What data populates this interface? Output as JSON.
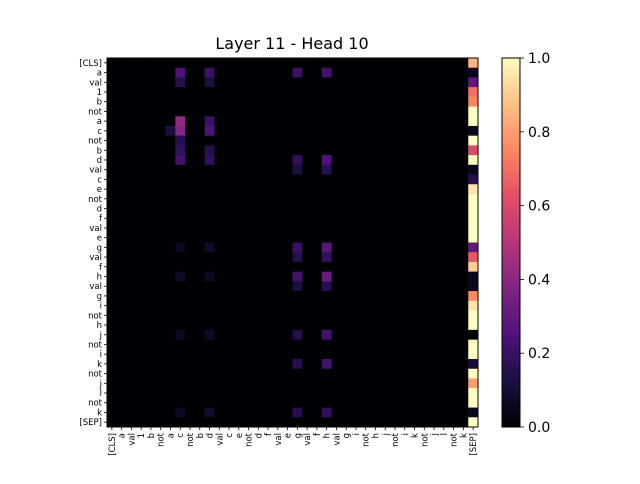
{
  "chart_data": {
    "type": "heatmap",
    "title": "Layer 11 - Head 10",
    "xlabel": "",
    "ylabel": "",
    "colormap": "magma",
    "vmin": 0.0,
    "vmax": 1.0,
    "colorbar_ticks": [
      "0.0",
      "0.2",
      "0.4",
      "0.6",
      "0.8",
      "1.0"
    ],
    "y_tick_labels": [
      "[CLS]",
      "a",
      "val",
      "1",
      "b",
      "not",
      "a",
      "c",
      "not",
      "b",
      "d",
      "val",
      "c",
      "e",
      "not",
      "d",
      "f",
      "val",
      "e",
      "g",
      "val",
      "f",
      "h",
      "val",
      "g",
      "i",
      "not",
      "h",
      "j",
      "not",
      "i",
      "k",
      "not",
      "j",
      "l",
      "not",
      "k",
      "[SEP]"
    ],
    "x_tick_labels": [
      "[CLS]",
      "a",
      "val",
      "1",
      "b",
      "not",
      "a",
      "c",
      "not",
      "b",
      "d",
      "val",
      "c",
      "e",
      "not",
      "d",
      "f",
      "val",
      "e",
      "g",
      "val",
      "f",
      "h",
      "val",
      "g",
      "i",
      "not",
      "h",
      "j",
      "not",
      "i",
      "k",
      "not",
      "j",
      "l",
      "not",
      "k",
      "[SEP]"
    ],
    "n_tokens": 38,
    "description": "Attention weights; most mass on the final [SEP] column, with weak vertical streaks at columns 7, 10, 19, 22.",
    "sep_column_values": [
      0.85,
      0.05,
      0.3,
      0.7,
      0.75,
      1.0,
      1.0,
      0.05,
      1.0,
      0.6,
      1.0,
      0.05,
      0.15,
      0.95,
      1.0,
      1.0,
      1.0,
      1.0,
      1.0,
      0.3,
      0.65,
      0.9,
      0.05,
      0.05,
      0.75,
      0.95,
      1.0,
      1.0,
      0.0,
      1.0,
      1.0,
      0.1,
      1.0,
      0.8,
      1.0,
      1.0,
      0.05,
      1.0
    ],
    "strong_cells": [
      {
        "row": 1,
        "col": 7,
        "value": 0.25
      },
      {
        "row": 1,
        "col": 10,
        "value": 0.2
      },
      {
        "row": 1,
        "col": 19,
        "value": 0.2
      },
      {
        "row": 1,
        "col": 22,
        "value": 0.22
      },
      {
        "row": 2,
        "col": 7,
        "value": 0.15
      },
      {
        "row": 2,
        "col": 10,
        "value": 0.12
      },
      {
        "row": 6,
        "col": 7,
        "value": 0.42
      },
      {
        "row": 6,
        "col": 10,
        "value": 0.2
      },
      {
        "row": 7,
        "col": 7,
        "value": 0.38
      },
      {
        "row": 7,
        "col": 10,
        "value": 0.25
      },
      {
        "row": 7,
        "col": 6,
        "value": 0.12
      },
      {
        "row": 8,
        "col": 7,
        "value": 0.15
      },
      {
        "row": 9,
        "col": 7,
        "value": 0.18
      },
      {
        "row": 9,
        "col": 10,
        "value": 0.15
      },
      {
        "row": 10,
        "col": 7,
        "value": 0.22
      },
      {
        "row": 10,
        "col": 10,
        "value": 0.18
      },
      {
        "row": 10,
        "col": 19,
        "value": 0.18
      },
      {
        "row": 10,
        "col": 22,
        "value": 0.25
      },
      {
        "row": 11,
        "col": 19,
        "value": 0.12
      },
      {
        "row": 11,
        "col": 22,
        "value": 0.15
      },
      {
        "row": 19,
        "col": 19,
        "value": 0.2
      },
      {
        "row": 19,
        "col": 22,
        "value": 0.28
      },
      {
        "row": 20,
        "col": 19,
        "value": 0.15
      },
      {
        "row": 20,
        "col": 22,
        "value": 0.18
      },
      {
        "row": 22,
        "col": 19,
        "value": 0.22
      },
      {
        "row": 22,
        "col": 22,
        "value": 0.32
      },
      {
        "row": 23,
        "col": 19,
        "value": 0.12
      },
      {
        "row": 23,
        "col": 22,
        "value": 0.15
      },
      {
        "row": 28,
        "col": 19,
        "value": 0.15
      },
      {
        "row": 28,
        "col": 22,
        "value": 0.22
      },
      {
        "row": 31,
        "col": 19,
        "value": 0.15
      },
      {
        "row": 31,
        "col": 22,
        "value": 0.22
      },
      {
        "row": 36,
        "col": 19,
        "value": 0.15
      },
      {
        "row": 36,
        "col": 22,
        "value": 0.18
      },
      {
        "row": 19,
        "col": 7,
        "value": 0.06
      },
      {
        "row": 19,
        "col": 10,
        "value": 0.08
      },
      {
        "row": 22,
        "col": 7,
        "value": 0.07
      },
      {
        "row": 22,
        "col": 10,
        "value": 0.07
      },
      {
        "row": 28,
        "col": 7,
        "value": 0.06
      },
      {
        "row": 28,
        "col": 10,
        "value": 0.07
      },
      {
        "row": 36,
        "col": 7,
        "value": 0.06
      },
      {
        "row": 36,
        "col": 10,
        "value": 0.08
      }
    ]
  }
}
